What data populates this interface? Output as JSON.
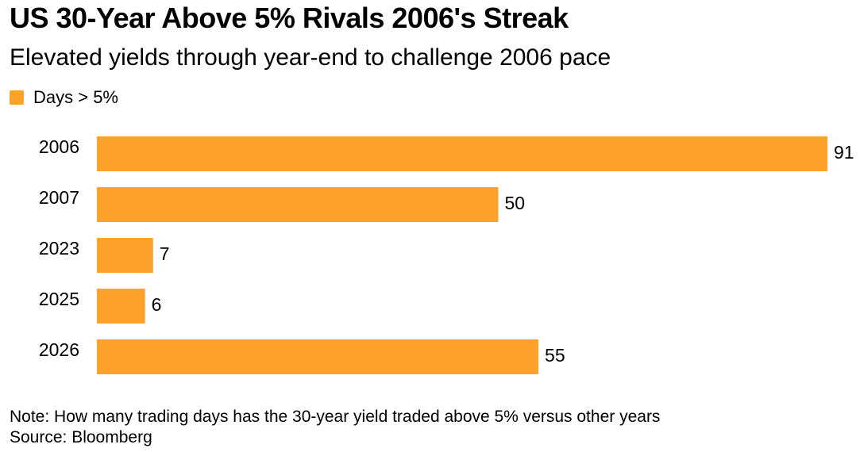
{
  "chart_data": {
    "type": "bar",
    "orientation": "horizontal",
    "title": "US 30-Year Above 5% Rivals 2006's Streak",
    "subtitle": "Elevated yields through year-end to challenge 2006 pace",
    "categories": [
      "2006",
      "2007",
      "2023",
      "2025",
      "2026"
    ],
    "series": [
      {
        "name": "Days > 5%",
        "values": [
          91,
          50,
          7,
          6,
          55
        ],
        "color": "#FFA22B"
      }
    ],
    "xlim": [
      0,
      91
    ],
    "grid": false,
    "legend_position": "top-left",
    "data_labels": true
  },
  "footer": {
    "note": "Note: How many trading days has the 30-year yield traded above 5% versus other years",
    "source": "Source: Bloomberg"
  }
}
